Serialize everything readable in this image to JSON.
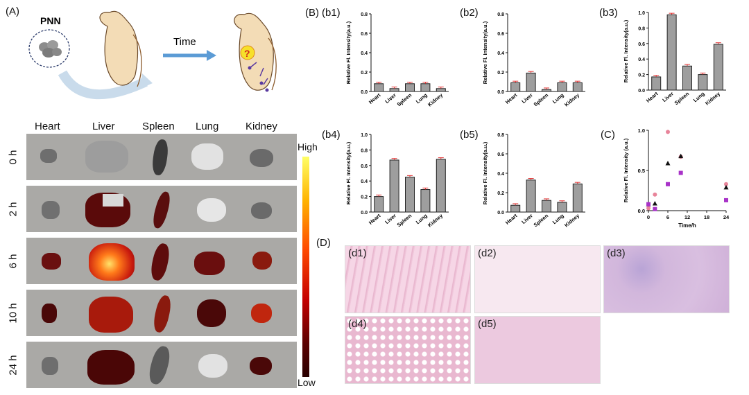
{
  "panel_a": {
    "label": "(A)",
    "pnn_label": "PNN",
    "time_label": "Time",
    "question_mark": "?",
    "organs": [
      "Heart",
      "Liver",
      "Spleen",
      "Lung",
      "Kidney"
    ],
    "time_points": [
      "0 h",
      "2 h",
      "6 h",
      "10 h",
      "24 h"
    ],
    "colorbar_high": "High",
    "colorbar_low": "Low",
    "colors": {
      "accent": "#5b9bd5",
      "mouse": "#f3dcb6",
      "background_row": "#aaa9a6"
    }
  },
  "panel_b": {
    "label": "(B)"
  },
  "panel_c": {
    "label": "(C)"
  },
  "panel_d": {
    "label": "(D)",
    "sub_labels": [
      "(d1)",
      "(d2)",
      "(d3)",
      "(d4)",
      "(d5)"
    ]
  },
  "chart_data": [
    {
      "id": "b1",
      "type": "bar",
      "sublabel": "(b1)",
      "categories": [
        "Heart",
        "Liver",
        "Spleen",
        "Lung",
        "Kidney"
      ],
      "values": [
        0.08,
        0.03,
        0.08,
        0.08,
        0.03
      ],
      "ylabel": "Relative Fl. Intensity(a.u.)",
      "ylim": [
        0,
        0.8
      ],
      "yticks": [
        "0.0",
        "0.2",
        "0.4",
        "0.6",
        "0.8"
      ]
    },
    {
      "id": "b2",
      "type": "bar",
      "sublabel": "(b2)",
      "categories": [
        "Heart",
        "Liver",
        "Spleen",
        "Lung",
        "Kidney"
      ],
      "values": [
        0.09,
        0.19,
        0.02,
        0.09,
        0.09
      ],
      "ylabel": "Relative Fl. Intensity(a.u.)",
      "ylim": [
        0,
        0.8
      ],
      "yticks": [
        "0.0",
        "0.2",
        "0.4",
        "0.6",
        "0.8"
      ]
    },
    {
      "id": "b3",
      "type": "bar",
      "sublabel": "(b3)",
      "categories": [
        "Heart",
        "Liver",
        "Spleen",
        "Lung",
        "Kidney"
      ],
      "values": [
        0.17,
        0.97,
        0.31,
        0.2,
        0.59
      ],
      "ylabel": "Relative Fl. Intensity(a.u.)",
      "ylim": [
        0,
        1.0
      ],
      "yticks": [
        "0.0",
        "0.2",
        "0.4",
        "0.6",
        "0.8",
        "1.0"
      ]
    },
    {
      "id": "b4",
      "type": "bar",
      "sublabel": "(b4)",
      "categories": [
        "Heart",
        "Liver",
        "Spleen",
        "Lung",
        "Kidney"
      ],
      "values": [
        0.2,
        0.67,
        0.45,
        0.29,
        0.68
      ],
      "ylabel": "Relative Fl. Intensity(a.u.)",
      "ylim": [
        0,
        1.0
      ],
      "yticks": [
        "0.0",
        "0.2",
        "0.4",
        "0.6",
        "0.8",
        "1.0"
      ]
    },
    {
      "id": "b5",
      "type": "bar",
      "sublabel": "(b5)",
      "categories": [
        "Heart",
        "Liver",
        "Spleen",
        "Lung",
        "Kidney"
      ],
      "values": [
        0.07,
        0.33,
        0.12,
        0.1,
        0.29
      ],
      "ylabel": "Relative Fl. Intensity(a.u.)",
      "ylim": [
        0,
        0.8
      ],
      "yticks": [
        "0.0",
        "0.2",
        "0.4",
        "0.6",
        "0.8"
      ]
    },
    {
      "id": "c",
      "type": "scatter",
      "ylabel": "Relative Fl. Intensity (a.u.)",
      "xlabel": "Time/h",
      "xlim": [
        0,
        24
      ],
      "ylim": [
        0,
        1.0
      ],
      "xticks": [
        "0",
        "6",
        "12",
        "18",
        "24"
      ],
      "yticks": [
        "0.0",
        "0.5",
        "1.0"
      ],
      "series": [
        {
          "name": "pink",
          "color": "#e8849a",
          "marker": "circle",
          "x": [
            0,
            2,
            6,
            10,
            24
          ],
          "y": [
            0.03,
            0.2,
            0.98,
            0.67,
            0.33
          ]
        },
        {
          "name": "black",
          "color": "#111111",
          "marker": "triangle",
          "x": [
            0,
            2,
            6,
            10,
            24
          ],
          "y": [
            0.08,
            0.09,
            0.59,
            0.68,
            0.29
          ]
        },
        {
          "name": "purple",
          "color": "#a832c8",
          "marker": "square",
          "x": [
            0,
            2,
            6,
            10,
            24
          ],
          "y": [
            0.08,
            0.02,
            0.33,
            0.47,
            0.13
          ]
        }
      ]
    }
  ]
}
